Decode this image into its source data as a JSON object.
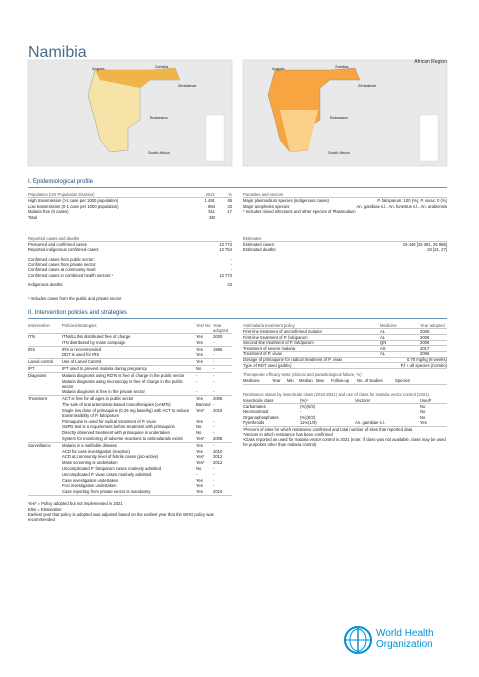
{
  "header": {
    "title": "Namibia",
    "region": "African Region"
  },
  "maps": {
    "left": [
      "Angola",
      "Zambia",
      "Zimbabwe",
      "Botswana",
      "South Africa"
    ],
    "right": [
      "Angola",
      "Zambia",
      "Zimbabwe",
      "Botswana",
      "South Africa"
    ]
  },
  "epi": {
    "title": "I. Epidemiological profile",
    "population": {
      "header": [
        "Population (UN Population Division)",
        "2021",
        "%"
      ],
      "rows": [
        [
          "High transmission (>1 case per 1000 population)",
          "1 491",
          "49"
        ],
        [
          "Low transmission (0-1 case per 1000 population)",
          "984",
          "33"
        ],
        [
          "Malaria free (0 cases)",
          "511",
          "17"
        ],
        [
          "Total",
          "3M"
        ]
      ]
    },
    "parasites": {
      "header": "Parasites and vectors",
      "rows": [
        [
          "Major plasmodium species (indigenous cases)",
          "P. falciparum: 100 (%), P. vivax: 0 (%)"
        ],
        [
          "Major anopheles species",
          "An. gambiae s.l., An. funestus s.l., An. arabiensis"
        ]
      ],
      "note": "* Includes mixed infections and other species of Plasmodium"
    },
    "reported": {
      "header": "Reported cases and deaths",
      "groups": [
        [
          [
            "Presumed and confirmed cases",
            "13 773"
          ],
          [
            "Reported indigenous confirmed cases",
            "13 754"
          ]
        ],
        [
          [
            "Confirmed cases from public sector:",
            "-"
          ],
          [
            "Confirmed cases from private sector:",
            "-"
          ],
          [
            "Confirmed cases at community level:",
            "-"
          ],
          [
            "Confirmed cases in combined health sectors ¹",
            "13 773"
          ]
        ],
        [
          [
            "Indigenous deaths:",
            "23"
          ]
        ]
      ],
      "footnote": "¹ Includes cases from the public and private sector"
    },
    "estimates": {
      "header": "Estimates",
      "rows": [
        [
          "Estimated cases:",
          "19 446 [15 391, 25 886]"
        ],
        [
          "Estimated deaths:",
          "23 [21, 27]"
        ]
      ]
    }
  },
  "interventions": {
    "title": "II. Intervention policies and strategies",
    "policies": {
      "header": [
        "Intervention",
        "Policies/Strategies",
        "Yes/ No",
        "Year adopted"
      ],
      "groups": [
        {
          "name": "ITN",
          "rows": [
            [
              "ITNs/LLINs distributed free of charge",
              "Yes",
              "2000"
            ],
            [
              "ITN distributed by mass campaign",
              "Yes",
              "-"
            ]
          ]
        },
        {
          "name": "IRS",
          "rows": [
            [
              "IRS is recommended",
              "Yes",
              "1965"
            ],
            [
              "DDT is used for IRS",
              "Yes",
              "-"
            ]
          ]
        },
        {
          "name": "Larval control",
          "rows": [
            [
              "Use of Larval Control",
              "Yes",
              "-"
            ]
          ]
        },
        {
          "name": "IPT",
          "rows": [
            [
              "IPT used to prevent malaria during pregnancy",
              "No",
              "-"
            ]
          ]
        },
        {
          "name": "Diagnosis",
          "rows": [
            [
              "Malaria diagnosis using RDTs is free of charge in the public sector",
              "-",
              "-"
            ],
            [
              "Malaria diagnosis using microscopy is free of charge in the public sector",
              "-",
              "-"
            ],
            [
              "Malaria diagnosis is free in the private sector",
              "-",
              "-"
            ]
          ]
        },
        {
          "name": "Treatment",
          "rows": [
            [
              "ACT is free for all ages in public sector",
              "Yes",
              "2005"
            ],
            [
              "The sale of oral artemisinin-based monotherapies (oAMTs)",
              "Banned",
              "-"
            ],
            [
              "Single low dose of primaquine (0.25 mg base/kg) with ACT to reduce transmissibility of P. falciparum",
              "Yes*",
              "2015"
            ],
            [
              "Primaquine is used for radical treatment of P. vivax",
              "Yes",
              "-"
            ],
            [
              "G6PD test is a requirement before treatment with primaquine",
              "No",
              "-"
            ],
            [
              "Directly observed treatment with primaquine is undertaken",
              "No",
              "-"
            ],
            [
              "System for monitoring of adverse reactions to antimalarials exists",
              "Yes*",
              "2008"
            ]
          ]
        },
        {
          "name": "Surveillance",
          "rows": [
            [
              "Malaria is a notifiable disease",
              "Yes",
              "-"
            ],
            [
              "ACD for case investigation (reactive)",
              "Yes",
              "2010"
            ],
            [
              "ACD at community level of febrile cases (pro-active)",
              "Yes*",
              "2012"
            ],
            [
              "Mass screening is undertaken",
              "Yes*",
              "2012"
            ],
            [
              "Uncomplicated P. falciparum cases routinely admitted",
              "No",
              "-"
            ],
            [
              "Uncomplicated P. vivax cases routinely admitted",
              "-",
              "-"
            ],
            [
              "Case investigation undertaken",
              "Yes",
              "-"
            ],
            [
              "Foci investigation undertaken",
              "Yes",
              "-"
            ],
            [
              "Case reporting from private sector is mandatory",
              "Yes",
              "2010"
            ]
          ]
        }
      ]
    },
    "treatment": {
      "header": [
        "Antimalaria treatment policy",
        "Medicine",
        "Year adopted"
      ],
      "rows": [
        [
          "First-line treatment of unconfirmed malaria",
          "AL",
          "2006"
        ],
        [
          "First-line treatment of P. falciparum",
          "AL",
          "2006"
        ],
        [
          "Second-line treatment of P. falciparum",
          "QN",
          "2006"
        ],
        [
          "Treatment of severe malaria",
          "AS",
          "2017"
        ],
        [
          "Treatment of P. vivax",
          "AL",
          "2006"
        ],
        [
          "Dosage of primaquine for radical treatment of P. vivax",
          "0.75 mg/kg (8 weeks)"
        ],
        [
          "Type of RDT used (public)",
          "P.f + all species (Combo)"
        ]
      ]
    },
    "efficacy": {
      "title": "Therapeutic efficacy tests (clinical and parasitological failure, %)",
      "header": [
        "Medicine",
        "Year",
        "Min",
        "Median",
        "Max",
        "Follow-up",
        "No. of studies",
        "Species"
      ]
    },
    "resistance": {
      "title": "Resistance status by insecticide class (2010-2021) and use of class for malaria vector control (2021)",
      "header": [
        "Insecticide class",
        "(%)¹",
        "Vectors²",
        "Used³"
      ],
      "rows": [
        [
          "Carbamates",
          "(%)(0/3)",
          "No"
        ],
        [
          "Neonicotinoid",
          "-",
          "No"
        ],
        [
          "Organophosphates",
          "(%)(0/3)",
          "No"
        ],
        [
          "Pyrethroids",
          "11%(1/9)",
          "An. gambiae s.l.",
          "Yes"
        ]
      ],
      "notes": [
        "¹Percent of sites for which resistance confirmed and total number of sites that reported data",
        "²Vectors in which resistance has been confirmed",
        "³Class reported as used for malaria vector control in 2021 (note: if class was not available, class may be used for purposes other than malaria control)"
      ]
    },
    "notes": [
      "Yes* = Policy adopted but not implemented in 2021",
      "Elim = Elimination",
      "Earliest year that policy is adopted was adjusted based on the earliest year that the WHO policy was recommended"
    ]
  },
  "logo": {
    "line1": "World Health",
    "line2": "Organization"
  }
}
